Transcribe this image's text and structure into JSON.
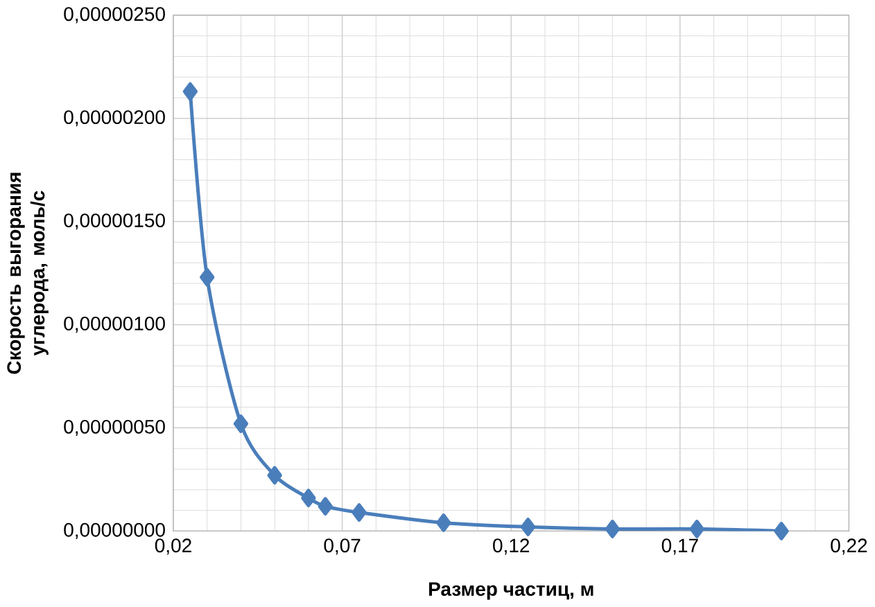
{
  "chart_data": {
    "type": "line",
    "xlabel": "Размер частиц, м",
    "ylabel": "Скорость выгорания углерода, моль/с",
    "x": [
      0.025,
      0.03,
      0.04,
      0.05,
      0.06,
      0.065,
      0.075,
      0.1,
      0.125,
      0.15,
      0.175,
      0.2
    ],
    "series": [
      {
        "color": "#4a7ebb",
        "values": [
          2.13e-06,
          1.23e-06,
          5.2e-07,
          2.7e-07,
          1.6e-07,
          1.2e-07,
          9e-08,
          4e-08,
          2e-08,
          1e-08,
          1e-08,
          0.0
        ]
      }
    ],
    "xlim": [
      0.02,
      0.22
    ],
    "xticks": [
      {
        "value": 0.02,
        "label": "0,02"
      },
      {
        "value": 0.07,
        "label": "0,07"
      },
      {
        "value": 0.12,
        "label": "0,12"
      },
      {
        "value": 0.17,
        "label": "0,17"
      },
      {
        "value": 0.22,
        "label": "0,22"
      }
    ],
    "ylim": [
      0,
      2.5e-06
    ],
    "yticks": [
      {
        "value": 0,
        "label": "0,00000000"
      },
      {
        "value": 5e-07,
        "label": "0,00000050"
      },
      {
        "value": 1e-06,
        "label": "0,00000100"
      },
      {
        "value": 1.5e-06,
        "label": "0,00000150"
      },
      {
        "value": 2e-06,
        "label": "0,00000200"
      },
      {
        "value": 2.5e-06,
        "label": "0,00000250"
      }
    ],
    "grid": true,
    "marker": "diamond",
    "line_style": "solid"
  }
}
